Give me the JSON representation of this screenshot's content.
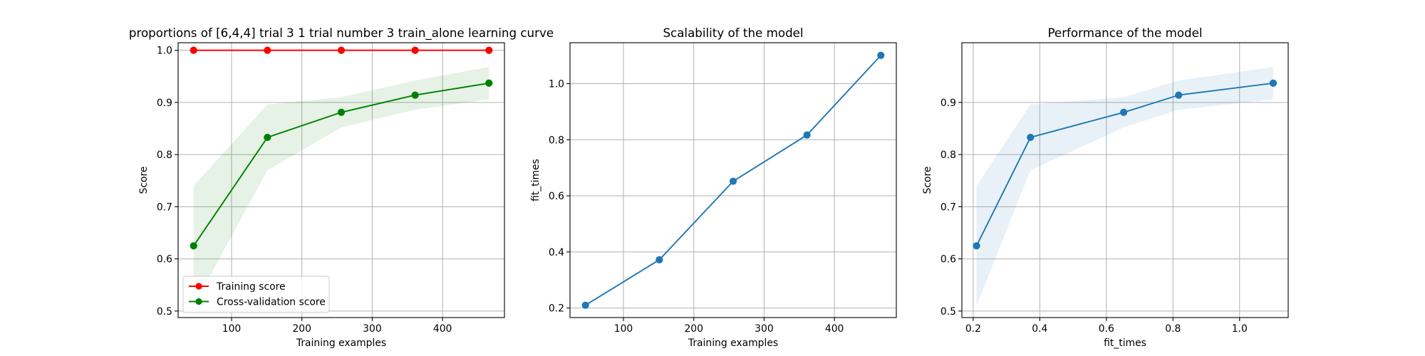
{
  "chart_data": [
    {
      "type": "line",
      "title": "proportions of [6,4,4] trial 3 1 trial number 3 train_alone learning curve",
      "xlabel": "Training examples",
      "ylabel": "Score",
      "xlim": [
        24,
        488
      ],
      "ylim": [
        0.4875,
        1.0145
      ],
      "xticks": [
        100,
        200,
        300,
        400
      ],
      "yticks": [
        0.5,
        0.6,
        0.7,
        0.8,
        0.9,
        1.0
      ],
      "x": [
        46,
        151,
        256,
        361,
        466
      ],
      "grid": true,
      "legend_position": "lower-left",
      "series": [
        {
          "name": "Training score",
          "color": "#ff0000",
          "values": [
            1.0,
            1.0,
            1.0,
            1.0,
            1.0
          ],
          "band_lower": [
            1.0,
            1.0,
            1.0,
            1.0,
            1.0
          ],
          "band_upper": [
            1.0,
            1.0,
            1.0,
            1.0,
            1.0
          ]
        },
        {
          "name": "Cross-validation score",
          "color": "#008000",
          "values": [
            0.625,
            0.833,
            0.881,
            0.914,
            0.937
          ],
          "band_lower": [
            0.51,
            0.77,
            0.852,
            0.886,
            0.906
          ],
          "band_upper": [
            0.74,
            0.896,
            0.91,
            0.942,
            0.968
          ]
        }
      ]
    },
    {
      "type": "line",
      "title": "Scalability of the model",
      "xlabel": "Training examples",
      "ylabel": "fit_times",
      "xlim": [
        24,
        488
      ],
      "ylim": [
        0.166,
        1.146
      ],
      "xticks": [
        100,
        200,
        300,
        400
      ],
      "yticks": [
        0.2,
        0.4,
        0.6,
        0.8,
        1.0
      ],
      "x": [
        46,
        151,
        256,
        361,
        466
      ],
      "grid": true,
      "series": [
        {
          "color": "#1f77b4",
          "values": [
            0.21,
            0.372,
            0.652,
            0.817,
            1.101
          ]
        }
      ]
    },
    {
      "type": "line",
      "title": "Performance of the model",
      "xlabel": "fit_times",
      "ylabel": "Score",
      "xlim": [
        0.166,
        1.146
      ],
      "ylim": [
        0.4875,
        1.0145
      ],
      "xticks": [
        0.2,
        0.4,
        0.6,
        0.8,
        1.0
      ],
      "yticks": [
        0.5,
        0.6,
        0.7,
        0.8,
        0.9
      ],
      "x": [
        0.21,
        0.372,
        0.652,
        0.817,
        1.101
      ],
      "grid": true,
      "series": [
        {
          "color": "#1f77b4",
          "values": [
            0.625,
            0.833,
            0.881,
            0.914,
            0.937
          ],
          "band_lower": [
            0.51,
            0.77,
            0.852,
            0.886,
            0.906
          ],
          "band_upper": [
            0.74,
            0.896,
            0.91,
            0.942,
            0.968
          ]
        }
      ]
    }
  ]
}
